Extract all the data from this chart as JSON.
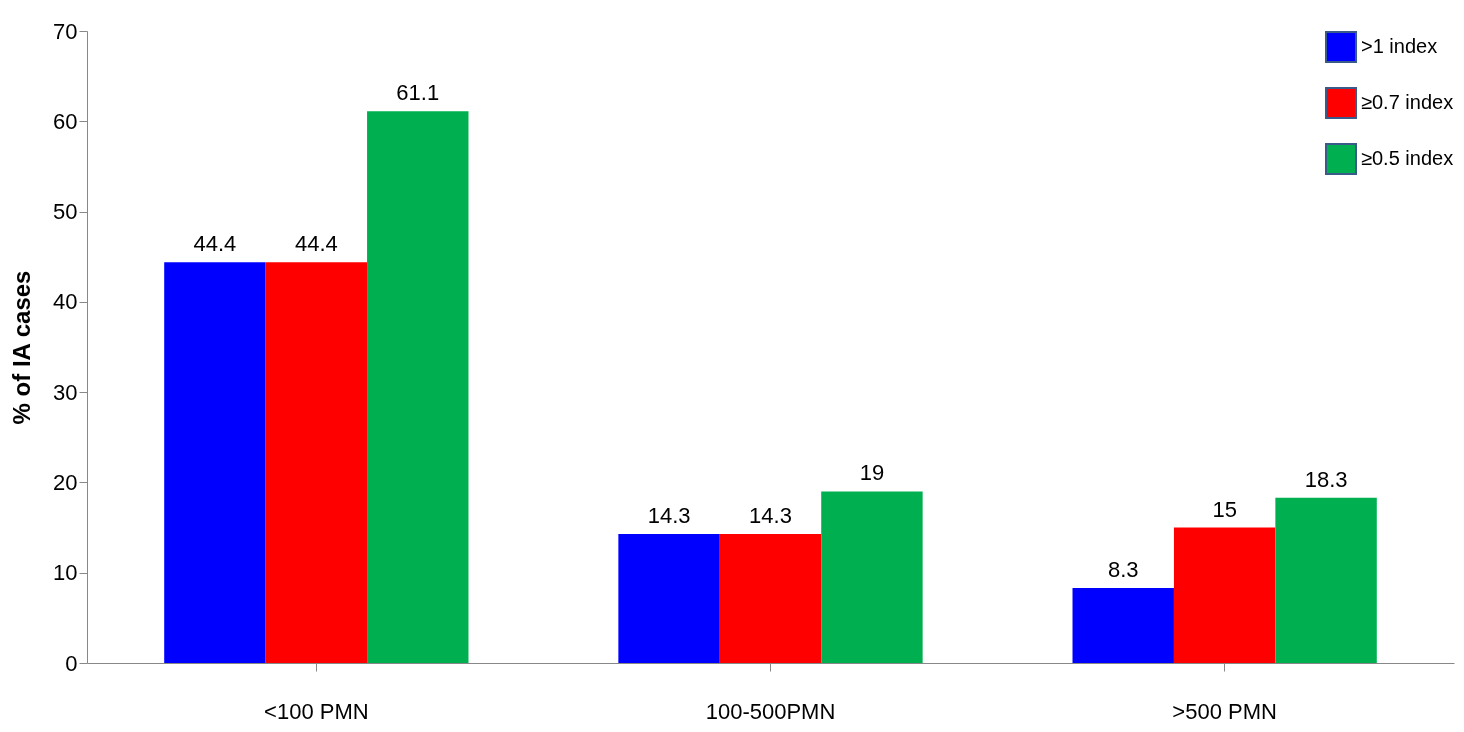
{
  "chart_data": {
    "type": "bar",
    "ylabel": "% of IA cases",
    "categories": [
      "<100 PMN",
      "100-500PMN",
      ">500 PMN"
    ],
    "series": [
      {
        "name": ">1 index",
        "color": "#0000ff",
        "values": [
          44.4,
          14.3,
          8.3
        ]
      },
      {
        "name": "≥0.7 index",
        "color": "#ff0000",
        "values": [
          44.4,
          14.3,
          15
        ]
      },
      {
        "name": "≥0.5 index",
        "color": "#00b050",
        "values": [
          61.1,
          19,
          18.3
        ]
      }
    ],
    "ylim": [
      0,
      70
    ],
    "yticks": [
      0,
      10,
      20,
      30,
      40,
      50,
      60,
      70
    ],
    "grid": false,
    "legend": "top right",
    "data_labels": true
  }
}
